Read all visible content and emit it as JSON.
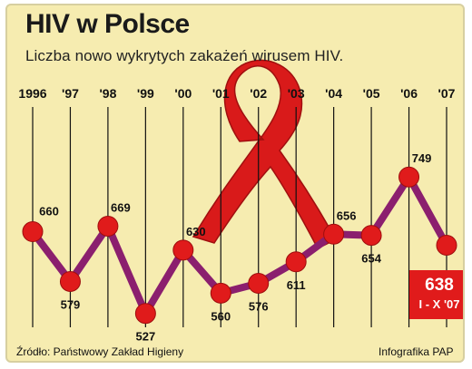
{
  "title": "HIV w Polsce",
  "subtitle": "Liczba nowo wykrytych zakażeń wirusem HIV.",
  "source": "Źródło: Państwowy Zakład Higieny",
  "credit": "Infografika PAP",
  "colors": {
    "background": "#f6ecb0",
    "line": "#8b1f6e",
    "marker": "#e01b1b",
    "ribbon": "#d91a1a"
  },
  "chart_data": {
    "type": "line",
    "categories": [
      "1996",
      "'97",
      "'98",
      "'99",
      "'00",
      "'01",
      "'02",
      "'03",
      "'04",
      "'05",
      "'06",
      "'07"
    ],
    "values": [
      660,
      579,
      669,
      527,
      630,
      560,
      576,
      611,
      656,
      654,
      749,
      638
    ],
    "value_labels": [
      "660",
      "579",
      "669",
      "527",
      "630",
      "560",
      "576",
      "611",
      "656",
      "654",
      "749",
      ""
    ],
    "ylim": [
      500,
      770
    ],
    "grid": "vertical",
    "last_point_badge": {
      "value": "638",
      "period": "I - X '07"
    }
  }
}
